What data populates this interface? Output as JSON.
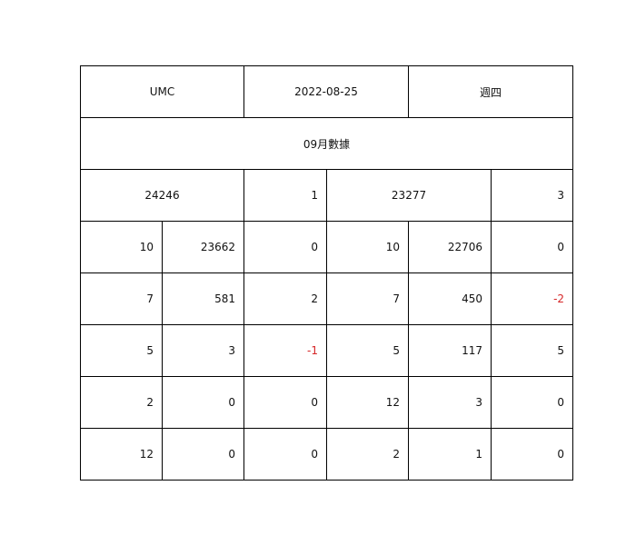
{
  "header": {
    "ticker": "UMC",
    "date": "2022-08-25",
    "weekday": "週四"
  },
  "month_title": "09月數據",
  "summary": {
    "left_total": "24246",
    "left_change": "1",
    "right_total": "23277",
    "right_change": "3"
  },
  "rows": [
    [
      "10",
      "23662",
      "0",
      "10",
      "22706",
      "0"
    ],
    [
      "7",
      "581",
      "2",
      "7",
      "450",
      "-2"
    ],
    [
      "5",
      "3",
      "-1",
      "5",
      "117",
      "5"
    ],
    [
      "2",
      "0",
      "0",
      "12",
      "3",
      "0"
    ],
    [
      "12",
      "0",
      "0",
      "2",
      "1",
      "0"
    ]
  ],
  "colors": {
    "negative": "#d62728",
    "border": "#000000",
    "text": "#111111"
  }
}
